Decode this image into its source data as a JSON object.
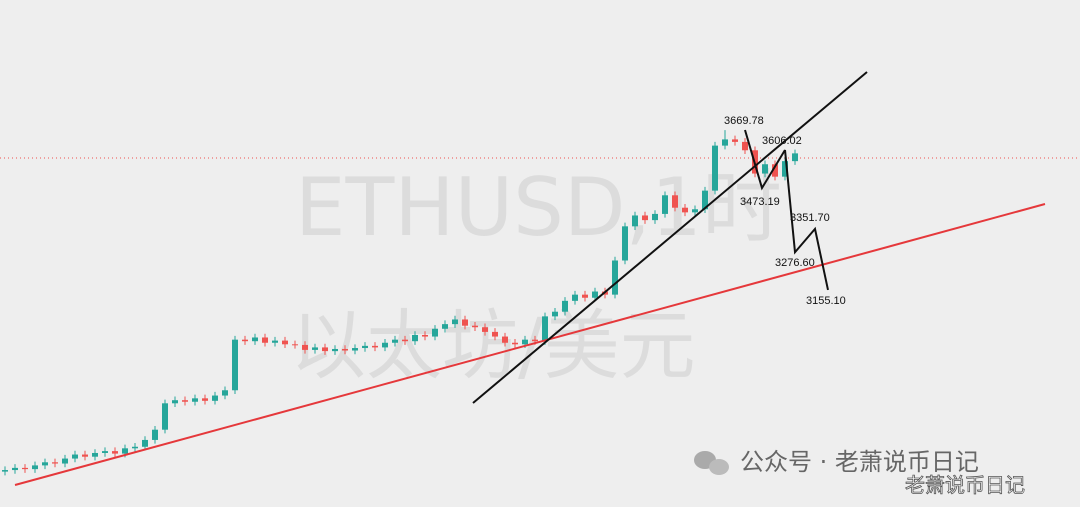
{
  "chart_data": {
    "type": "candlestick",
    "watermark": [
      "ETHUSD,1时",
      "以太坊/美元"
    ],
    "up_color": "#26a69a",
    "down_color": "#ef5350",
    "ylim": [
      2456,
      4089
    ],
    "annotations": [
      3669.78,
      3606.02,
      3473.19,
      {
        "value": 3351.7,
        "label": "3351.70"
      },
      {
        "value": 3276.6,
        "label": "3276.60"
      },
      {
        "value": 3155.1,
        "label": "3155.10"
      }
    ],
    "open": [
      2570,
      2575,
      2582,
      2578,
      2590,
      2600,
      2596,
      2612,
      2625,
      2618,
      2630,
      2636,
      2628,
      2645,
      2650,
      2672,
      2705,
      2790,
      2800,
      2795,
      2806,
      2798,
      2815,
      2832,
      2995,
      2990,
      3002,
      2985,
      2992,
      2980,
      2978,
      2962,
      2970,
      2958,
      2965,
      2960,
      2968,
      2975,
      2970,
      2985,
      2995,
      2990,
      3010,
      3005,
      3030,
      3045,
      3060,
      3040,
      3035,
      3020,
      3005,
      2985,
      2980,
      2995,
      2990,
      3070,
      3085,
      3120,
      3140,
      3130,
      3150,
      3140,
      3250,
      3360,
      3395,
      3380,
      3400,
      3460,
      3420,
      3405,
      3415,
      3475,
      3620,
      3640,
      3632,
      3605,
      3530,
      3560,
      3520,
      3570
    ],
    "high": [
      2587,
      2594,
      2594,
      2602,
      2612,
      2612,
      2624,
      2637,
      2637,
      2642,
      2648,
      2648,
      2657,
      2662,
      2684,
      2717,
      2802,
      2812,
      2812,
      2818,
      2818,
      2827,
      2844,
      3007,
      3007,
      3014,
      3014,
      3004,
      3004,
      2992,
      2990,
      2982,
      2982,
      2977,
      2977,
      2980,
      2987,
      2987,
      2997,
      3007,
      3007,
      3022,
      3022,
      3042,
      3057,
      3072,
      3072,
      3052,
      3047,
      3032,
      3017,
      2997,
      3007,
      3007,
      3082,
      3097,
      3132,
      3152,
      3152,
      3162,
      3162,
      3262,
      3372,
      3407,
      3407,
      3412,
      3472,
      3472,
      3432,
      3427,
      3487,
      3632,
      3670,
      3652,
      3644,
      3617,
      3572,
      3572,
      3582,
      3607
    ],
    "low": [
      2558,
      2563,
      2566,
      2566,
      2578,
      2584,
      2584,
      2600,
      2606,
      2606,
      2618,
      2616,
      2616,
      2633,
      2638,
      2660,
      2693,
      2778,
      2783,
      2783,
      2786,
      2786,
      2803,
      2820,
      2978,
      2978,
      2973,
      2973,
      2968,
      2966,
      2950,
      2950,
      2946,
      2946,
      2948,
      2948,
      2956,
      2958,
      2958,
      2973,
      2978,
      2978,
      2993,
      2993,
      3018,
      3033,
      3028,
      3023,
      3008,
      2993,
      2973,
      2968,
      2968,
      2978,
      2978,
      3058,
      3073,
      3108,
      3118,
      3118,
      3128,
      3128,
      3238,
      3348,
      3368,
      3368,
      3388,
      3408,
      3393,
      3393,
      3403,
      3463,
      3608,
      3620,
      3593,
      3518,
      3518,
      3508,
      3508,
      3558
    ],
    "close": [
      2575,
      2582,
      2578,
      2590,
      2600,
      2596,
      2612,
      2625,
      2618,
      2630,
      2636,
      2628,
      2645,
      2650,
      2672,
      2705,
      2790,
      2800,
      2795,
      2806,
      2798,
      2815,
      2832,
      2995,
      2990,
      3002,
      2985,
      2992,
      2980,
      2978,
      2962,
      2970,
      2958,
      2965,
      2960,
      2968,
      2975,
      2970,
      2985,
      2995,
      2990,
      3010,
      3005,
      3030,
      3045,
      3060,
      3040,
      3035,
      3020,
      3005,
      2985,
      2980,
      2995,
      2990,
      3070,
      3085,
      3120,
      3140,
      3130,
      3150,
      3140,
      3250,
      3360,
      3395,
      3380,
      3400,
      3460,
      3420,
      3405,
      3415,
      3475,
      3620,
      3640,
      3632,
      3605,
      3530,
      3560,
      3520,
      3570,
      3595
    ]
  },
  "footer": {
    "account": "公众号 · 老萧说币日记",
    "brand": "老萧说币日记"
  }
}
